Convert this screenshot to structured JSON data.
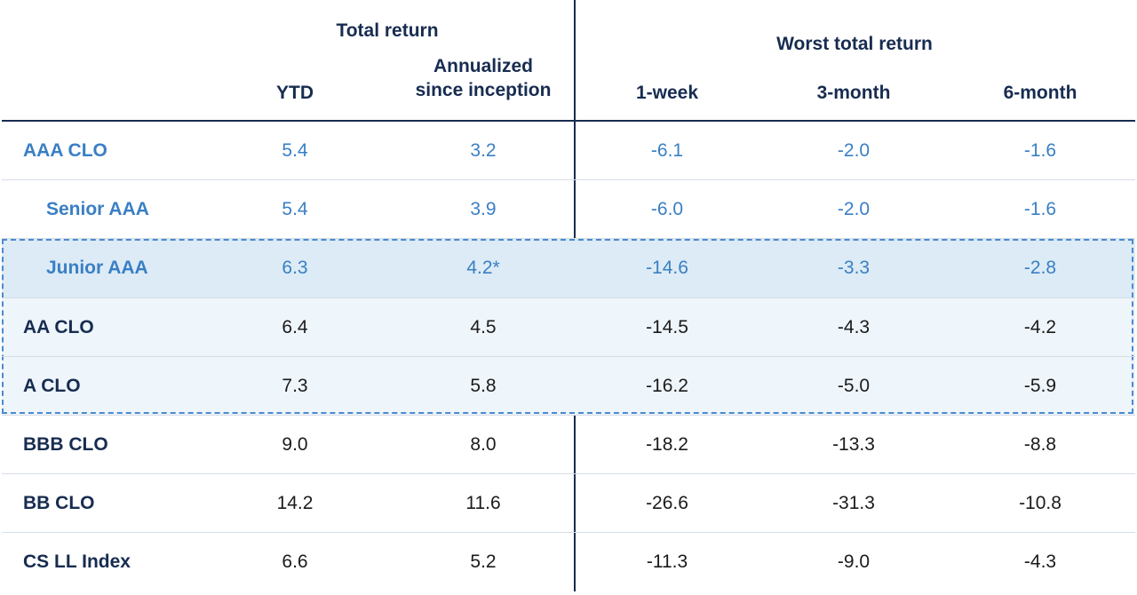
{
  "header": {
    "total_return_group": "Total return",
    "worst_total_return_group": "Worst total return",
    "columns": [
      "YTD",
      "Annualized\nsince inception",
      "1-week",
      "3-month",
      "6-month"
    ]
  },
  "colors": {
    "header_text": "#172c50",
    "blue_rows_text": "#3a7fc4",
    "highlight_band_strong": "#dcebf5",
    "highlight_band_light": "#eef5fb",
    "dashed_border": "#4a8ad0"
  },
  "chart_data": {
    "type": "table",
    "column_groups": [
      {
        "label": "Total return",
        "columns": [
          "YTD",
          "Annualized since inception"
        ]
      },
      {
        "label": "Worst total return",
        "columns": [
          "1-week",
          "3-month",
          "6-month"
        ]
      }
    ],
    "rows": [
      {
        "label": "AAA CLO",
        "style": "blue",
        "values": [
          "5.4",
          "3.2",
          "-6.1",
          "-2.0",
          "-1.6"
        ]
      },
      {
        "label": "Senior AAA",
        "style": "blue",
        "indent": true,
        "values": [
          "5.4",
          "3.9",
          "-6.0",
          "-2.0",
          "-1.6"
        ]
      },
      {
        "label": "Junior AAA",
        "style": "blue",
        "indent": true,
        "highlight": "strong",
        "values": [
          "6.3",
          "4.2*",
          "-14.6",
          "-3.3",
          "-2.8"
        ]
      },
      {
        "label": "AA CLO",
        "style": "normal",
        "highlight": "light",
        "values": [
          "6.4",
          "4.5",
          "-14.5",
          "-4.3",
          "-4.2"
        ]
      },
      {
        "label": "A CLO",
        "style": "normal",
        "highlight": "light",
        "values": [
          "7.3",
          "5.8",
          "-16.2",
          "-5.0",
          "-5.9"
        ]
      },
      {
        "label": "BBB CLO",
        "style": "normal",
        "values": [
          "9.0",
          "8.0",
          "-18.2",
          "-13.3",
          "-8.8"
        ]
      },
      {
        "label": "BB CLO",
        "style": "normal",
        "values": [
          "14.2",
          "11.6",
          "-26.6",
          "-31.3",
          "-10.8"
        ]
      },
      {
        "label": "CS LL Index",
        "style": "normal",
        "values": [
          "6.6",
          "5.2",
          "-11.3",
          "-9.0",
          "-4.3"
        ]
      }
    ]
  }
}
